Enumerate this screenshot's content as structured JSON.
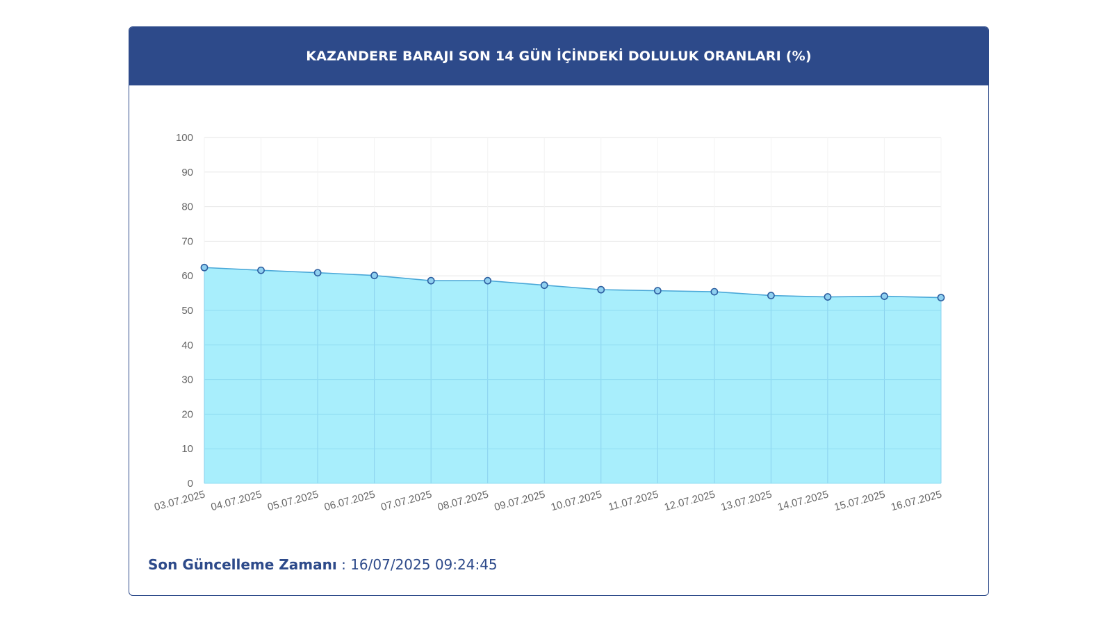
{
  "header": {
    "title": "KAZANDERE BARAJI SON 14 GÜN İÇİNDEKİ DOLULUK ORANLARI (%)"
  },
  "footer": {
    "label": "Son Güncelleme Zamanı",
    "separator": " : ",
    "value": "16/07/2025 09:24:45"
  },
  "colors": {
    "header_bg": "#2d4a8a",
    "area_fill": "#a8eefc",
    "line": "#4aa8d8",
    "point_fill": "#8fd0f0",
    "point_stroke": "#2d5fa0",
    "grid": "#e6e6e6",
    "vline": "#8ad0ee",
    "tick_text": "#666666"
  },
  "chart_data": {
    "type": "area",
    "title": "KAZANDERE BARAJI SON 14 GÜN İÇİNDEKİ DOLULUK ORANLARI (%)",
    "xlabel": "",
    "ylabel": "",
    "ylim": [
      0,
      100
    ],
    "yticks": [
      0,
      10,
      20,
      30,
      40,
      50,
      60,
      70,
      80,
      90,
      100
    ],
    "grid": true,
    "categories": [
      "03.07.2025",
      "04.07.2025",
      "05.07.2025",
      "06.07.2025",
      "07.07.2025",
      "08.07.2025",
      "09.07.2025",
      "10.07.2025",
      "11.07.2025",
      "12.07.2025",
      "13.07.2025",
      "14.07.2025",
      "15.07.2025",
      "16.07.2025"
    ],
    "series": [
      {
        "values": [
          62.4,
          61.6,
          60.9,
          60.1,
          58.6,
          58.6,
          57.3,
          56.0,
          55.7,
          55.4,
          54.3,
          53.9,
          54.1,
          53.7
        ]
      }
    ]
  }
}
